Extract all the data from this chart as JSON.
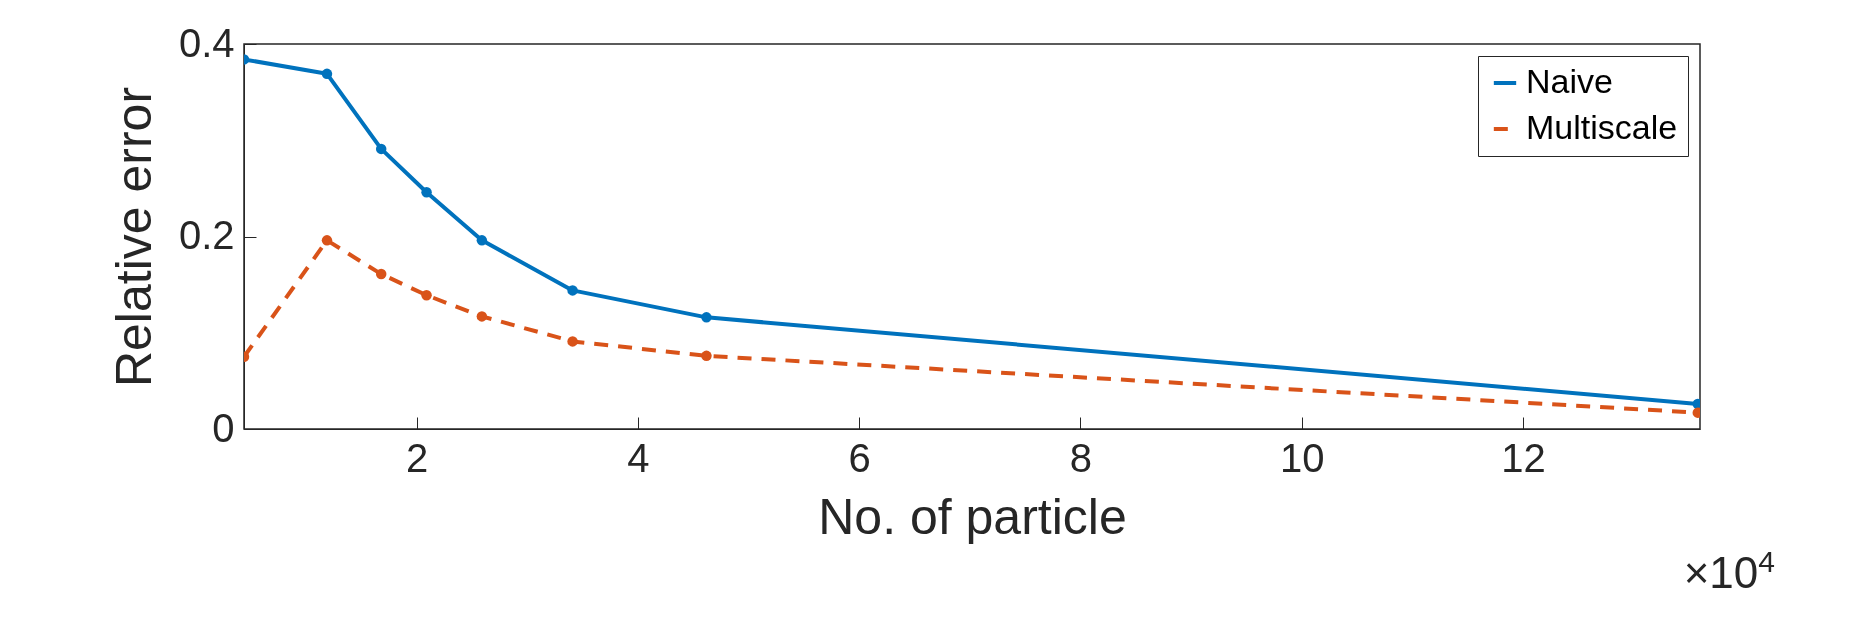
{
  "chart_data": {
    "type": "line",
    "xlabel": "No. of particle",
    "ylabel": "Relative error",
    "annotations": [
      "×10$^{4}$"
    ],
    "xlim": [
      0.44,
      13.6
    ],
    "xticks": [
      2,
      4,
      6,
      8,
      10,
      12
    ],
    "ylim": [
      0,
      0.4
    ],
    "yticks": [
      0,
      0.2,
      0.4
    ],
    "grid": false,
    "legend": "top right",
    "marker": "circle",
    "series": [
      {
        "name": "Naive",
        "color": "#0072bd",
        "line_style": "solid",
        "x": [
          0.44,
          1.19,
          1.68,
          2.09,
          2.59,
          3.41,
          4.62,
          13.58
        ],
        "values": [
          0.384,
          0.369,
          0.291,
          0.246,
          0.196,
          0.144,
          0.116,
          0.026
        ]
      },
      {
        "name": "Multiscale",
        "color": "#d95319",
        "line_style": "dashed",
        "x": [
          0.44,
          1.19,
          1.68,
          2.09,
          2.59,
          3.41,
          4.62,
          13.58
        ],
        "values": [
          0.075,
          0.196,
          0.161,
          0.139,
          0.117,
          0.091,
          0.076,
          0.017
        ]
      }
    ]
  }
}
